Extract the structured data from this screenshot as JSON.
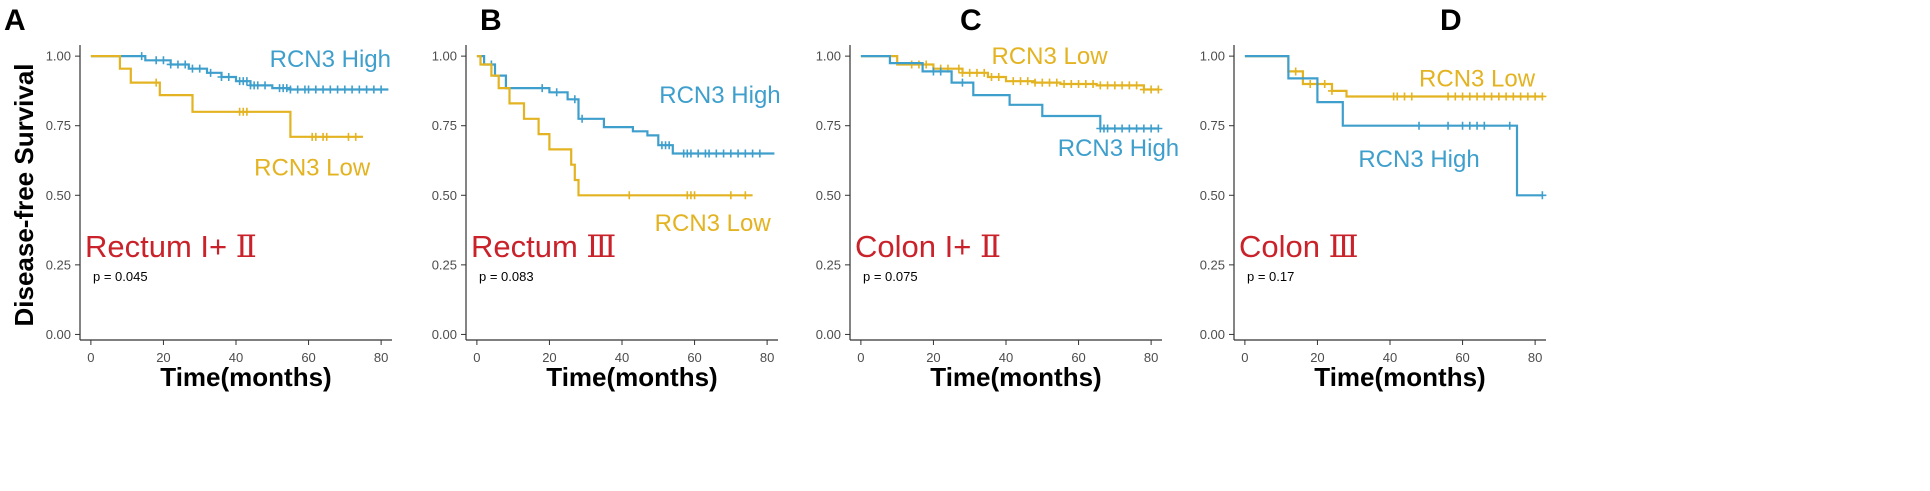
{
  "figure": {
    "y_axis_label": "Disease-free Survival",
    "colors": {
      "high": "#3e9fcc",
      "low": "#e3b321",
      "panel_label": "#c9222a",
      "axis": "#333333",
      "tick_text": "#4d4d4d"
    }
  },
  "chart_data": [
    {
      "type": "line",
      "panel_letter": "A",
      "title": "Rectum I+",
      "title_numeral": "Ⅱ",
      "pvalue": "p = 0.045",
      "xlabel": "Time(months)",
      "ylabel": "Disease-free Survival",
      "xlim": [
        -3,
        83
      ],
      "ylim": [
        -0.02,
        1.04
      ],
      "x_ticks": [
        0,
        20,
        40,
        60,
        80
      ],
      "y_ticks": [
        0,
        0.25,
        0.5,
        0.75,
        1.0
      ],
      "y_tick_labels": [
        "0.00",
        "0.25",
        "0.50",
        "0.75",
        "1.00"
      ],
      "series": [
        {
          "name": "RCN3 High",
          "key": "high",
          "legend_x": 66,
          "legend_y": 0.99,
          "steps": [
            [
              0,
              1.0
            ],
            [
              15,
              0.985
            ],
            [
              22,
              0.97
            ],
            [
              27,
              0.955
            ],
            [
              32,
              0.94
            ],
            [
              36,
              0.925
            ],
            [
              40,
              0.91
            ],
            [
              44,
              0.895
            ],
            [
              50,
              0.885
            ],
            [
              55,
              0.88
            ]
          ],
          "end": 82,
          "censors": [
            14,
            18,
            20,
            22,
            24,
            26,
            28,
            30,
            33,
            36,
            38,
            41,
            42,
            43,
            44,
            45,
            46,
            48,
            52,
            53,
            54,
            55,
            57,
            59,
            60,
            62,
            64,
            66,
            68,
            70,
            72,
            74,
            76,
            78,
            80
          ]
        },
        {
          "name": "RCN3 Low",
          "key": "low",
          "legend_x": 61,
          "legend_y": 0.6,
          "steps": [
            [
              0,
              1.0
            ],
            [
              8,
              0.955
            ],
            [
              11,
              0.905
            ],
            [
              19,
              0.86
            ],
            [
              28,
              0.8
            ],
            [
              55,
              0.71
            ]
          ],
          "end": 75,
          "censors": [
            18,
            41,
            42,
            43,
            61,
            62,
            64,
            65,
            71,
            73
          ]
        }
      ]
    },
    {
      "type": "line",
      "panel_letter": "B",
      "title": "Rectum",
      "title_numeral": "Ⅲ",
      "pvalue": "p = 0.083",
      "xlabel": "Time(months)",
      "ylabel": "",
      "xlim": [
        -3,
        83
      ],
      "ylim": [
        -0.02,
        1.04
      ],
      "x_ticks": [
        0,
        20,
        40,
        60,
        80
      ],
      "y_ticks": [
        0,
        0.25,
        0.5,
        0.75,
        1.0
      ],
      "y_tick_labels": [
        "0.00",
        "0.25",
        "0.50",
        "0.75",
        "1.00"
      ],
      "series": [
        {
          "name": "RCN3 High",
          "key": "high",
          "legend_x": 67,
          "legend_y": 0.86,
          "steps": [
            [
              0,
              1.0
            ],
            [
              2,
              0.97
            ],
            [
              5,
              0.93
            ],
            [
              8,
              0.885
            ],
            [
              20,
              0.87
            ],
            [
              25,
              0.845
            ],
            [
              28,
              0.775
            ],
            [
              35,
              0.745
            ],
            [
              43,
              0.73
            ],
            [
              47,
              0.715
            ],
            [
              50,
              0.68
            ],
            [
              54,
              0.65
            ]
          ],
          "end": 82,
          "censors": [
            4,
            18,
            22,
            27,
            29,
            51,
            52,
            53,
            57,
            58,
            59,
            61,
            63,
            64,
            66,
            68,
            70,
            72,
            74,
            76,
            78
          ]
        },
        {
          "name": "RCN3 Low",
          "key": "low",
          "legend_x": 65,
          "legend_y": 0.4,
          "steps": [
            [
              0,
              1.0
            ],
            [
              1,
              0.97
            ],
            [
              4,
              0.93
            ],
            [
              6,
              0.885
            ],
            [
              9,
              0.83
            ],
            [
              13,
              0.775
            ],
            [
              17,
              0.72
            ],
            [
              20,
              0.665
            ],
            [
              26,
              0.61
            ],
            [
              27,
              0.555
            ],
            [
              28,
              0.5
            ]
          ],
          "end": 76,
          "censors": [
            42,
            58,
            59,
            60,
            70,
            74
          ]
        }
      ]
    },
    {
      "type": "line",
      "panel_letter": "C",
      "title": "Colon I+",
      "title_numeral": "Ⅱ",
      "pvalue": "p = 0.075",
      "xlabel": "Time(months)",
      "ylabel": "",
      "xlim": [
        -3,
        83
      ],
      "ylim": [
        -0.02,
        1.04
      ],
      "x_ticks": [
        0,
        20,
        40,
        60,
        80
      ],
      "y_ticks": [
        0,
        0.25,
        0.5,
        0.75,
        1.0
      ],
      "y_tick_labels": [
        "0.00",
        "0.25",
        "0.50",
        "0.75",
        "1.00"
      ],
      "series": [
        {
          "name": "RCN3 Low",
          "key": "low",
          "legend_x": 52,
          "legend_y": 1.0,
          "steps": [
            [
              0,
              1.0
            ],
            [
              10,
              0.97
            ],
            [
              20,
              0.955
            ],
            [
              28,
              0.94
            ],
            [
              35,
              0.925
            ],
            [
              40,
              0.91
            ],
            [
              48,
              0.905
            ],
            [
              55,
              0.9
            ],
            [
              65,
              0.895
            ],
            [
              78,
              0.88
            ]
          ],
          "end": 82,
          "censors": [
            14,
            16,
            18,
            22,
            24,
            27,
            28,
            30,
            32,
            34,
            36,
            38,
            42,
            44,
            46,
            48,
            50,
            52,
            54,
            56,
            58,
            60,
            62,
            64,
            66,
            68,
            70,
            72,
            74,
            76,
            78,
            80,
            82
          ]
        },
        {
          "name": "RCN3 High",
          "key": "high",
          "legend_x": 71,
          "legend_y": 0.67,
          "steps": [
            [
              0,
              1.0
            ],
            [
              8,
              0.975
            ],
            [
              17,
              0.945
            ],
            [
              25,
              0.905
            ],
            [
              31,
              0.86
            ],
            [
              41,
              0.825
            ],
            [
              50,
              0.785
            ],
            [
              66,
              0.74
            ]
          ],
          "end": 82,
          "censors": [
            20,
            22,
            28,
            66,
            67,
            68,
            70,
            72,
            74,
            76,
            78,
            80,
            82
          ]
        }
      ]
    },
    {
      "type": "line",
      "panel_letter": "D",
      "title": "Colon",
      "title_numeral": "Ⅲ",
      "pvalue": "p = 0.17",
      "xlabel": "Time(months)",
      "ylabel": "",
      "xlim": [
        -3,
        83
      ],
      "ylim": [
        -0.02,
        1.04
      ],
      "x_ticks": [
        0,
        20,
        40,
        60,
        80
      ],
      "y_ticks": [
        0,
        0.25,
        0.5,
        0.75,
        1.0
      ],
      "y_tick_labels": [
        "0.00",
        "0.25",
        "0.50",
        "0.75",
        "1.00"
      ],
      "series": [
        {
          "name": "RCN3 Low",
          "key": "low",
          "legend_x": 64,
          "legend_y": 0.92,
          "steps": [
            [
              0,
              1.0
            ],
            [
              12,
              0.945
            ],
            [
              16,
              0.9
            ],
            [
              24,
              0.875
            ],
            [
              28,
              0.855
            ]
          ],
          "end": 82,
          "censors": [
            14,
            18,
            20,
            22,
            24,
            41,
            42,
            44,
            46,
            56,
            58,
            60,
            62,
            64,
            66,
            68,
            70,
            72,
            74,
            76,
            78,
            80,
            82
          ]
        },
        {
          "name": "RCN3 High",
          "key": "high",
          "legend_x": 48,
          "legend_y": 0.63,
          "steps": [
            [
              0,
              1.0
            ],
            [
              12,
              0.92
            ],
            [
              20,
              0.835
            ],
            [
              27,
              0.75
            ],
            [
              75,
              0.5
            ]
          ],
          "end": 82,
          "censors": [
            48,
            56,
            60,
            62,
            64,
            66,
            73,
            82
          ]
        }
      ]
    }
  ]
}
